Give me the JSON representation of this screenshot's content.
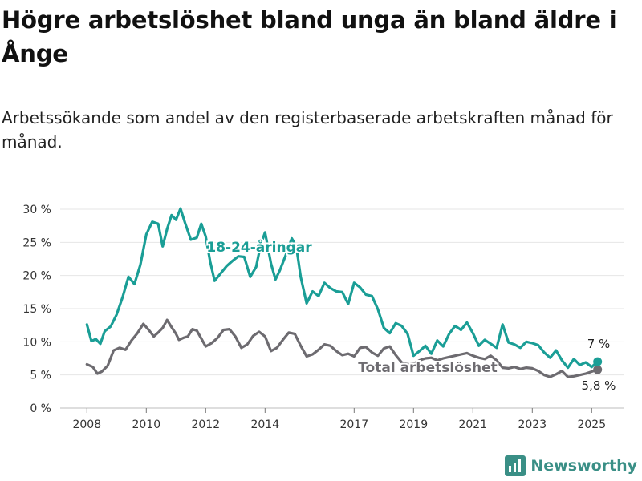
{
  "header": {
    "title": "Högre arbetslöshet bland unga än bland äldre i Ånge",
    "subtitle": "Arbetssökande som andel av den registerbaserade arbetskraften månad för månad."
  },
  "brand": {
    "name": "Newsworthy",
    "color": "#3a8f86"
  },
  "chart_data": {
    "type": "line",
    "title": "Högre arbetslöshet bland unga än bland äldre i Ånge",
    "subtitle": "Arbetssökande som andel av den registerbaserade arbetskraften månad för månad.",
    "x_ticks": [
      2008,
      2010,
      2012,
      2014,
      2017,
      2019,
      2021,
      2023,
      2025
    ],
    "x_tick_labels": [
      "2008",
      "2010",
      "2012",
      "2014",
      "2017",
      "2019",
      "2021",
      "2023",
      "2025"
    ],
    "xlim": [
      2007.1,
      2026.1
    ],
    "ylim": [
      0,
      30
    ],
    "y_ticks": [
      0,
      5,
      10,
      15,
      20,
      25,
      30
    ],
    "y_tick_labels": [
      "0 %",
      "5 %",
      "10 %",
      "15 %",
      "20 %",
      "25 %",
      "30 %"
    ],
    "grid": true,
    "series": [
      {
        "name": "18-24-åringar",
        "color": "#1a9e96",
        "end_label": "7 %",
        "x": [
          2008.0,
          2008.15,
          2008.3,
          2008.45,
          2008.6,
          2008.8,
          2009.0,
          2009.2,
          2009.4,
          2009.6,
          2009.8,
          2010.0,
          2010.2,
          2010.4,
          2010.55,
          2010.7,
          2010.85,
          2011.0,
          2011.15,
          2011.3,
          2011.5,
          2011.7,
          2011.85,
          2012.0,
          2012.15,
          2012.3,
          2012.5,
          2012.7,
          2012.9,
          2013.1,
          2013.3,
          2013.5,
          2013.7,
          2013.85,
          2014.0,
          2014.2,
          2014.35,
          2014.5,
          2014.7,
          2014.9,
          2015.05,
          2015.2,
          2015.4,
          2015.6,
          2015.8,
          2016.0,
          2016.2,
          2016.4,
          2016.6,
          2016.8,
          2017.0,
          2017.2,
          2017.4,
          2017.6,
          2017.8,
          2018.0,
          2018.2,
          2018.4,
          2018.6,
          2018.8,
          2019.0,
          2019.2,
          2019.4,
          2019.6,
          2019.8,
          2020.0,
          2020.2,
          2020.4,
          2020.6,
          2020.8,
          2021.0,
          2021.2,
          2021.4,
          2021.6,
          2021.8,
          2022.0,
          2022.2,
          2022.4,
          2022.6,
          2022.8,
          2023.0,
          2023.2,
          2023.4,
          2023.6,
          2023.8,
          2024.0,
          2024.2,
          2024.4,
          2024.6,
          2024.8,
          2025.0,
          2025.2
        ],
        "values": [
          12.6,
          10.1,
          10.4,
          9.7,
          11.6,
          12.3,
          14.1,
          16.7,
          19.8,
          18.7,
          21.6,
          26.2,
          28.1,
          27.8,
          24.4,
          27.0,
          29.1,
          28.4,
          30.1,
          28.0,
          25.4,
          25.7,
          27.8,
          25.9,
          22.1,
          19.2,
          20.3,
          21.4,
          22.2,
          22.9,
          22.8,
          19.8,
          21.3,
          24.6,
          26.5,
          21.8,
          19.4,
          20.8,
          23.1,
          25.6,
          24.4,
          19.8,
          15.8,
          17.6,
          16.9,
          18.9,
          18.1,
          17.6,
          17.5,
          15.7,
          18.9,
          18.2,
          17.1,
          16.9,
          14.9,
          12.1,
          11.3,
          12.8,
          12.4,
          11.2,
          7.9,
          8.6,
          9.4,
          8.2,
          10.2,
          9.3,
          11.2,
          12.4,
          11.8,
          12.9,
          11.3,
          9.4,
          10.3,
          9.7,
          9.1,
          12.6,
          9.9,
          9.6,
          9.1,
          10.0,
          9.8,
          9.5,
          8.4,
          7.6,
          8.7,
          7.2,
          6.1,
          7.4,
          6.5,
          6.9,
          6.2,
          7.0
        ]
      },
      {
        "name": "Total arbetslöshet",
        "color": "#6d6b70",
        "end_label": "5,8 %",
        "x": [
          2008.0,
          2008.2,
          2008.35,
          2008.5,
          2008.7,
          2008.9,
          2009.1,
          2009.3,
          2009.5,
          2009.7,
          2009.9,
          2010.1,
          2010.25,
          2010.4,
          2010.55,
          2010.7,
          2010.85,
          2011.0,
          2011.1,
          2011.25,
          2011.4,
          2011.55,
          2011.7,
          2011.85,
          2012.0,
          2012.2,
          2012.4,
          2012.6,
          2012.8,
          2013.0,
          2013.2,
          2013.4,
          2013.6,
          2013.8,
          2014.0,
          2014.2,
          2014.4,
          2014.6,
          2014.8,
          2015.0,
          2015.2,
          2015.4,
          2015.6,
          2015.8,
          2016.0,
          2016.2,
          2016.4,
          2016.6,
          2016.8,
          2017.0,
          2017.2,
          2017.4,
          2017.6,
          2017.8,
          2018.0,
          2018.2,
          2018.4,
          2018.6,
          2018.8,
          2019.0,
          2019.2,
          2019.4,
          2019.6,
          2019.8,
          2020.0,
          2020.2,
          2020.4,
          2020.6,
          2020.8,
          2021.0,
          2021.2,
          2021.4,
          2021.6,
          2021.8,
          2022.0,
          2022.2,
          2022.4,
          2022.6,
          2022.8,
          2023.0,
          2023.2,
          2023.4,
          2023.6,
          2023.8,
          2024.0,
          2024.2,
          2024.4,
          2024.6,
          2024.8,
          2025.0,
          2025.2
        ],
        "values": [
          6.6,
          6.2,
          5.2,
          5.5,
          6.4,
          8.7,
          9.1,
          8.8,
          10.2,
          11.3,
          12.7,
          11.7,
          10.8,
          11.4,
          12.1,
          13.3,
          12.2,
          11.2,
          10.3,
          10.6,
          10.8,
          11.9,
          11.7,
          10.5,
          9.3,
          9.8,
          10.6,
          11.8,
          11.9,
          10.8,
          9.1,
          9.6,
          10.9,
          11.5,
          10.8,
          8.6,
          9.1,
          10.3,
          11.4,
          11.2,
          9.4,
          7.8,
          8.1,
          8.8,
          9.6,
          9.4,
          8.6,
          8.0,
          8.2,
          7.8,
          9.1,
          9.2,
          8.4,
          7.9,
          9.0,
          9.3,
          8.0,
          6.9,
          6.6,
          6.7,
          7.2,
          7.5,
          7.6,
          7.2,
          7.5,
          7.7,
          7.9,
          8.1,
          8.3,
          7.9,
          7.6,
          7.4,
          7.9,
          7.2,
          6.1,
          6.0,
          6.2,
          5.9,
          6.1,
          6.0,
          5.6,
          5.0,
          4.7,
          5.1,
          5.6,
          4.7,
          4.8,
          5.0,
          5.2,
          5.5,
          5.8
        ]
      }
    ]
  }
}
